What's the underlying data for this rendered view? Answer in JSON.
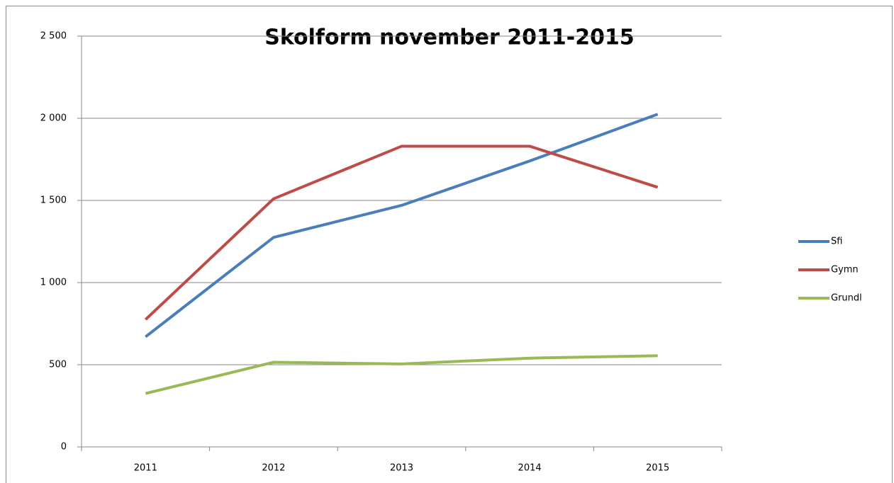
{
  "chart_data": {
    "type": "line",
    "title": "Skolform november 2011-2015",
    "categories": [
      "2011",
      "2012",
      "2013",
      "2014",
      "2015"
    ],
    "series": [
      {
        "name": "Sfi",
        "color": "#4a7ebb",
        "values": [
          670,
          1275,
          1470,
          1740,
          2025
        ]
      },
      {
        "name": "Gymn",
        "color": "#be4b48",
        "values": [
          775,
          1510,
          1830,
          1830,
          1580
        ]
      },
      {
        "name": "Grundl",
        "color": "#98b954",
        "values": [
          325,
          515,
          505,
          540,
          555
        ]
      }
    ],
    "ylim": [
      0,
      2500
    ],
    "yticks": [
      0,
      500,
      {
        "value": 1000,
        "label": "1 000"
      },
      {
        "value": 1500,
        "label": "1 500"
      },
      {
        "value": 2000,
        "label": "2 000"
      },
      {
        "value": 2500,
        "label": "2 500"
      }
    ],
    "grid": true,
    "legend": "right"
  }
}
